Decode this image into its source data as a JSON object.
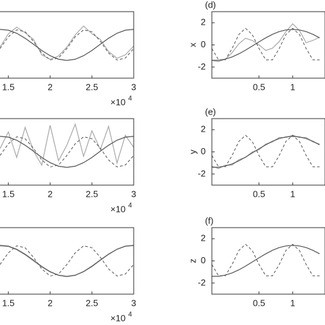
{
  "chart_data": [
    {
      "type": "line",
      "x_multiplier": "×10",
      "x_exponent": "4",
      "x": [
        1.4,
        1.5,
        1.6,
        1.7,
        1.8,
        1.9,
        2.0,
        2.1,
        2.2,
        2.3,
        2.4,
        2.5,
        2.6,
        2.7,
        2.8,
        2.9,
        3.0
      ],
      "xlim": [
        1.4,
        3
      ],
      "xticks": [
        1.5,
        2,
        2.5,
        3
      ],
      "ylim": [
        -3,
        3
      ],
      "series": [
        {
          "color": "#a8a8a8",
          "style": "solid",
          "values": [
            -0.2,
            1.0,
            1.6,
            1.1,
            0.5,
            -0.9,
            -1.3,
            -1.0,
            -0.2,
            0.9,
            1.7,
            1.0,
            0.5,
            -0.6,
            -1.2,
            -0.9,
            -0.1
          ]
        },
        {
          "color": "#555555",
          "style": "dashed",
          "values": [
            -0.33,
            0.73,
            1.36,
            1.19,
            0.33,
            -0.73,
            -1.36,
            -1.19,
            -0.33,
            0.73,
            1.36,
            1.19,
            0.33,
            -0.73,
            -1.36,
            -1.19,
            -0.33
          ]
        },
        {
          "color": "#555555",
          "style": "solid",
          "values": [
            1.4,
            1.33,
            1.05,
            0.6,
            0.06,
            -0.5,
            -0.97,
            -1.29,
            -1.4,
            -1.29,
            -0.97,
            -0.5,
            0.06,
            0.6,
            1.05,
            1.33,
            1.4
          ]
        }
      ]
    },
    {
      "type": "line",
      "panel_label": "(d)",
      "ylabel": "x",
      "x": [
        -0.2,
        -0.1,
        0,
        0.1,
        0.2,
        0.3,
        0.4,
        0.5,
        0.6,
        0.7,
        0.8,
        0.9,
        1.0,
        1.1,
        1.2,
        1.3,
        1.4
      ],
      "xlim": [
        -0.2,
        1.48
      ],
      "xticks": [
        0.5,
        1
      ],
      "ylim": [
        -3,
        3
      ],
      "yticks": [
        2,
        0,
        -2
      ],
      "series": [
        {
          "color": "#a8a8a8",
          "style": "solid",
          "values": [
            -1.4,
            -1.5,
            -1.3,
            -0.7,
            0.1,
            0.6,
            0.4,
            0.0,
            -0.5,
            -0.3,
            0.3,
            1.2,
            1.9,
            1.3,
            0.2,
            0.4,
            0.7
          ]
        },
        {
          "color": "#555555",
          "style": "dashed",
          "values": [
            -0.33,
            -1.35,
            -1.35,
            -0.33,
            0.94,
            1.5,
            0.94,
            -0.33,
            -1.35,
            -1.35,
            -0.33,
            0.94,
            1.5,
            0.94,
            -0.33,
            -1.35,
            -1.35
          ]
        },
        {
          "color": "#555555",
          "style": "solid",
          "values": [
            -1.39,
            -1.39,
            -1.28,
            -1.09,
            -0.81,
            -0.47,
            -0.1,
            0.28,
            0.64,
            0.95,
            1.2,
            1.35,
            1.4,
            1.35,
            1.2,
            0.95,
            0.64
          ]
        }
      ]
    },
    {
      "type": "line",
      "x_multiplier": "×10",
      "x_exponent": "4",
      "x": [
        1.4,
        1.5,
        1.6,
        1.7,
        1.8,
        1.9,
        2.0,
        2.1,
        2.2,
        2.3,
        2.4,
        2.5,
        2.6,
        2.7,
        2.8,
        2.9,
        3.0
      ],
      "xlim": [
        1.4,
        3
      ],
      "xticks": [
        1.5,
        2,
        2.5,
        3
      ],
      "ylim": [
        -3,
        3
      ],
      "series": [
        {
          "color": "#a8a8a8",
          "style": "solid",
          "values": [
            0.3,
            1.8,
            -0.5,
            2.2,
            0.1,
            -1.2,
            2.4,
            -0.8,
            0.6,
            2.5,
            -0.4,
            1.9,
            0.2,
            2.3,
            -1.0,
            1.5,
            0.4
          ]
        },
        {
          "color": "#555555",
          "style": "dashed",
          "values": [
            -0.33,
            0.73,
            1.36,
            1.19,
            0.33,
            -0.73,
            -1.36,
            -1.19,
            -0.33,
            0.73,
            1.36,
            1.19,
            0.33,
            -0.73,
            -1.36,
            -1.19,
            -0.33
          ]
        },
        {
          "color": "#555555",
          "style": "solid",
          "values": [
            1.4,
            1.33,
            1.05,
            0.6,
            0.06,
            -0.5,
            -0.97,
            -1.29,
            -1.4,
            -1.29,
            -0.97,
            -0.5,
            0.06,
            0.6,
            1.05,
            1.33,
            1.4
          ]
        }
      ]
    },
    {
      "type": "line",
      "panel_label": "(e)",
      "ylabel": "y",
      "x": [
        -0.2,
        -0.1,
        0,
        0.1,
        0.2,
        0.3,
        0.4,
        0.5,
        0.6,
        0.7,
        0.8,
        0.9,
        1.0,
        1.1,
        1.2,
        1.3,
        1.4
      ],
      "xlim": [
        -0.2,
        1.48
      ],
      "xticks": [
        0.5,
        1
      ],
      "ylim": [
        -3,
        3
      ],
      "yticks": [
        2,
        0,
        -2
      ],
      "series": [
        {
          "color": "#a8a8a8",
          "style": "solid",
          "values": [
            -1.3,
            -1.5,
            -1.2,
            -1.2,
            -0.7,
            -0.5,
            0.0,
            0.2,
            0.7,
            0.9,
            1.3,
            1.3,
            1.5,
            1.3,
            1.3,
            0.9,
            0.7
          ]
        },
        {
          "color": "#555555",
          "style": "dashed",
          "values": [
            -0.33,
            -1.35,
            -1.35,
            -0.33,
            0.94,
            1.5,
            0.94,
            -0.33,
            -1.35,
            -1.35,
            -0.33,
            0.94,
            1.5,
            0.94,
            -0.33,
            -1.35,
            -1.35
          ]
        },
        {
          "color": "#555555",
          "style": "solid",
          "values": [
            -1.39,
            -1.39,
            -1.28,
            -1.09,
            -0.81,
            -0.47,
            -0.1,
            0.28,
            0.64,
            0.95,
            1.2,
            1.35,
            1.4,
            1.35,
            1.2,
            0.95,
            0.64
          ]
        }
      ]
    },
    {
      "type": "line",
      "x_multiplier": "×10",
      "x_exponent": "4",
      "x": [
        1.4,
        1.5,
        1.6,
        1.7,
        1.8,
        1.9,
        2.0,
        2.1,
        2.2,
        2.3,
        2.4,
        2.5,
        2.6,
        2.7,
        2.8,
        2.9,
        3.0
      ],
      "xlim": [
        1.4,
        3
      ],
      "xticks": [
        1.5,
        2,
        2.5,
        3
      ],
      "ylim": [
        -3,
        3
      ],
      "series": [
        {
          "color": "#a8a8a8",
          "style": "solid",
          "values": [
            1.35,
            1.3,
            1.0,
            0.55,
            0.0,
            -0.55,
            -1.0,
            -1.3,
            -1.42,
            -1.3,
            -0.95,
            -0.45,
            0.1,
            0.62,
            1.05,
            1.32,
            1.38
          ]
        },
        {
          "color": "#555555",
          "style": "dashed",
          "values": [
            -0.33,
            0.73,
            1.36,
            1.19,
            0.33,
            -0.73,
            -1.36,
            -1.19,
            -0.33,
            0.73,
            1.36,
            1.19,
            0.33,
            -0.73,
            -1.36,
            -1.19,
            -0.33
          ]
        },
        {
          "color": "#555555",
          "style": "solid",
          "values": [
            1.4,
            1.33,
            1.05,
            0.6,
            0.06,
            -0.5,
            -0.97,
            -1.29,
            -1.4,
            -1.29,
            -0.97,
            -0.5,
            0.06,
            0.6,
            1.05,
            1.33,
            1.4
          ]
        }
      ]
    },
    {
      "type": "line",
      "panel_label": "(f)",
      "ylabel": "z",
      "x": [
        -0.2,
        -0.1,
        0,
        0.1,
        0.2,
        0.3,
        0.4,
        0.5,
        0.6,
        0.7,
        0.8,
        0.9,
        1.0,
        1.1,
        1.2,
        1.3,
        1.4
      ],
      "xlim": [
        -0.2,
        1.48
      ],
      "xticks": [
        0.5,
        1
      ],
      "ylim": [
        -3,
        3
      ],
      "yticks": [
        2,
        0,
        -2
      ],
      "series": [
        {
          "color": "#555555",
          "style": "dashed",
          "values": [
            -0.33,
            -1.35,
            -1.35,
            -0.33,
            0.94,
            1.5,
            0.94,
            -0.33,
            -1.35,
            -1.35,
            -0.33,
            0.94,
            1.5,
            0.94,
            -0.33,
            -1.35,
            -1.35
          ]
        },
        {
          "color": "#555555",
          "style": "solid",
          "values": [
            -1.39,
            -1.39,
            -1.28,
            -1.09,
            -0.81,
            -0.47,
            -0.1,
            0.28,
            0.64,
            0.95,
            1.2,
            1.35,
            1.4,
            1.35,
            1.2,
            0.95,
            0.64
          ]
        }
      ]
    }
  ]
}
